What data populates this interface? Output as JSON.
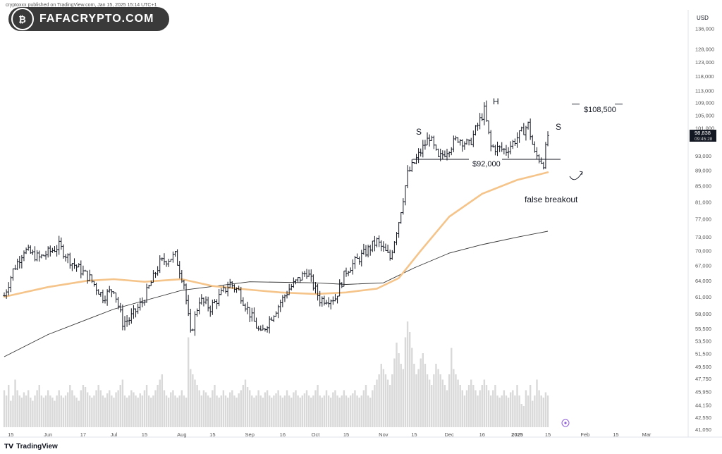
{
  "header": {
    "published_text": "cryptoxxx published on TradingView.com, Jan 15, 2025 15:14 UTC+1",
    "logo_text": "FAFACRYPTO.COM"
  },
  "footer": {
    "brand": "TradingView",
    "logo_icon": "tradingview-icon"
  },
  "chart_data": {
    "type": "candlestick",
    "currency_label": "USD",
    "y_scale": "log",
    "ylim": [
      41050,
      142000
    ],
    "y_ticks": [
      136000,
      128000,
      123000,
      118000,
      113000,
      109000,
      105000,
      101000,
      93000,
      89000,
      85000,
      81000,
      77000,
      73000,
      70000,
      67000,
      64000,
      61000,
      58000,
      55500,
      53500,
      51500,
      49500,
      47750,
      45950,
      44150,
      42550,
      41050
    ],
    "y_tick_labels": [
      "136,000",
      "128,000",
      "123,000",
      "118,000",
      "113,000",
      "109,000",
      "105,000",
      "101,000",
      "93,000",
      "89,000",
      "85,000",
      "81,000",
      "77,000",
      "73,000",
      "70,000",
      "67,000",
      "64,000",
      "61,000",
      "58,000",
      "55,500",
      "53,500",
      "51,500",
      "49,500",
      "47,750",
      "45,950",
      "44,150",
      "42,550",
      "41,050"
    ],
    "x_range": [
      "2024-05-12",
      "2025-03-20"
    ],
    "x_ticks": [
      {
        "date": "2024-05-15",
        "label": "15"
      },
      {
        "date": "2024-06-01",
        "label": "Jun"
      },
      {
        "date": "2024-06-17",
        "label": "17"
      },
      {
        "date": "2024-07-01",
        "label": "Jul"
      },
      {
        "date": "2024-07-15",
        "label": "15"
      },
      {
        "date": "2024-08-01",
        "label": "Aug"
      },
      {
        "date": "2024-08-15",
        "label": "15"
      },
      {
        "date": "2024-09-01",
        "label": "Sep"
      },
      {
        "date": "2024-09-16",
        "label": "16"
      },
      {
        "date": "2024-10-01",
        "label": "Oct"
      },
      {
        "date": "2024-10-15",
        "label": "15"
      },
      {
        "date": "2024-11-01",
        "label": "Nov"
      },
      {
        "date": "2024-11-15",
        "label": "15"
      },
      {
        "date": "2024-12-01",
        "label": "Dec"
      },
      {
        "date": "2024-12-16",
        "label": "16"
      },
      {
        "date": "2025-01-01",
        "label": "2025"
      },
      {
        "date": "2025-01-15",
        "label": "15"
      },
      {
        "date": "2025-02-01",
        "label": "Feb"
      },
      {
        "date": "2025-02-15",
        "label": "15"
      },
      {
        "date": "2025-03-01",
        "label": "Mar"
      }
    ],
    "price_anchors": [
      [
        "2024-05-12",
        61200
      ],
      [
        "2024-05-16",
        66000
      ],
      [
        "2024-05-21",
        70200
      ],
      [
        "2024-05-28",
        68500
      ],
      [
        "2024-06-06",
        71000
      ],
      [
        "2024-06-12",
        67500
      ],
      [
        "2024-06-20",
        64500
      ],
      [
        "2024-06-26",
        61000
      ],
      [
        "2024-07-01",
        62500
      ],
      [
        "2024-07-05",
        56500
      ],
      [
        "2024-07-08",
        57000
      ],
      [
        "2024-07-14",
        60000
      ],
      [
        "2024-07-22",
        67500
      ],
      [
        "2024-07-29",
        69000
      ],
      [
        "2024-08-02",
        63500
      ],
      [
        "2024-08-05",
        54500
      ],
      [
        "2024-08-09",
        60500
      ],
      [
        "2024-08-14",
        59000
      ],
      [
        "2024-08-23",
        63500
      ],
      [
        "2024-08-27",
        62000
      ],
      [
        "2024-09-01",
        58000
      ],
      [
        "2024-09-06",
        54500
      ],
      [
        "2024-09-10",
        57000
      ],
      [
        "2024-09-19",
        62500
      ],
      [
        "2024-09-27",
        65800
      ],
      [
        "2024-10-03",
        60500
      ],
      [
        "2024-10-10",
        60800
      ],
      [
        "2024-10-15",
        66000
      ],
      [
        "2024-10-21",
        68500
      ],
      [
        "2024-10-29",
        72000
      ],
      [
        "2024-11-04",
        68500
      ],
      [
        "2024-11-08",
        76500
      ],
      [
        "2024-11-12",
        88000
      ],
      [
        "2024-11-22",
        98500
      ],
      [
        "2024-11-26",
        92000
      ],
      [
        "2024-12-05",
        98000
      ],
      [
        "2024-12-10",
        96000
      ],
      [
        "2024-12-17",
        106500
      ],
      [
        "2024-12-20",
        95500
      ],
      [
        "2024-12-27",
        94500
      ],
      [
        "2025-01-06",
        102000
      ],
      [
        "2025-01-09",
        93500
      ],
      [
        "2025-01-13",
        91000
      ],
      [
        "2025-01-15",
        98838
      ]
    ],
    "last_price_label": "98,838",
    "countdown_label": "09:45:28",
    "sma_fast_label_color": "#f5c48a",
    "sma_fast": [
      [
        "2024-05-12",
        61000
      ],
      [
        "2024-06-01",
        62800
      ],
      [
        "2024-06-19",
        64000
      ],
      [
        "2024-07-01",
        64300
      ],
      [
        "2024-07-15",
        63800
      ],
      [
        "2024-08-01",
        64300
      ],
      [
        "2024-08-15",
        63000
      ],
      [
        "2024-09-01",
        62300
      ],
      [
        "2024-09-15",
        61800
      ],
      [
        "2024-10-01",
        61500
      ],
      [
        "2024-10-15",
        61800
      ],
      [
        "2024-10-29",
        62500
      ],
      [
        "2024-11-08",
        64500
      ],
      [
        "2024-11-18",
        70000
      ],
      [
        "2024-12-01",
        77500
      ],
      [
        "2024-12-16",
        83000
      ],
      [
        "2025-01-01",
        86500
      ],
      [
        "2025-01-15",
        88500
      ]
    ],
    "sma_slow": [
      [
        "2024-05-12",
        51000
      ],
      [
        "2024-06-01",
        54500
      ],
      [
        "2024-07-01",
        58800
      ],
      [
        "2024-08-01",
        62200
      ],
      [
        "2024-09-01",
        63800
      ],
      [
        "2024-10-01",
        63600
      ],
      [
        "2024-10-15",
        63300
      ],
      [
        "2024-11-01",
        63600
      ],
      [
        "2024-11-15",
        66500
      ],
      [
        "2024-12-01",
        69500
      ],
      [
        "2024-12-16",
        71300
      ],
      [
        "2025-01-01",
        72900
      ],
      [
        "2025-01-15",
        74200
      ]
    ],
    "volume_relative": [
      0.35,
      0.3,
      0.4,
      0.25,
      0.3,
      0.45,
      0.35,
      0.3,
      0.28,
      0.33,
      0.3,
      0.35,
      0.28,
      0.25,
      0.3,
      0.35,
      0.4,
      0.3,
      0.28,
      0.3,
      0.35,
      0.3,
      0.28,
      0.25,
      0.3,
      0.35,
      0.3,
      0.28,
      0.3,
      0.33,
      0.4,
      0.35,
      0.3,
      0.28,
      0.25,
      0.35,
      0.4,
      0.38,
      0.33,
      0.3,
      0.28,
      0.3,
      0.35,
      0.4,
      0.35,
      0.3,
      0.28,
      0.32,
      0.35,
      0.3,
      0.28,
      0.33,
      0.35,
      0.4,
      0.45,
      0.3,
      0.28,
      0.3,
      0.35,
      0.33,
      0.3,
      0.28,
      0.32,
      0.3,
      0.35,
      0.4,
      0.3,
      0.28,
      0.3,
      0.35,
      0.4,
      0.45,
      0.5,
      0.35,
      0.3,
      0.28,
      0.33,
      0.35,
      0.3,
      0.28,
      0.3,
      0.35,
      0.3,
      0.28,
      0.85,
      0.55,
      0.5,
      0.45,
      0.4,
      0.35,
      0.3,
      0.35,
      0.33,
      0.3,
      0.28,
      0.35,
      0.4,
      0.3,
      0.28,
      0.3,
      0.35,
      0.3,
      0.28,
      0.33,
      0.35,
      0.3,
      0.28,
      0.32,
      0.35,
      0.4,
      0.45,
      0.38,
      0.35,
      0.3,
      0.28,
      0.3,
      0.35,
      0.3,
      0.28,
      0.33,
      0.35,
      0.3,
      0.28,
      0.3,
      0.32,
      0.35,
      0.3,
      0.28,
      0.3,
      0.35,
      0.3,
      0.28,
      0.33,
      0.35,
      0.3,
      0.28,
      0.3,
      0.32,
      0.35,
      0.3,
      0.28,
      0.3,
      0.35,
      0.4,
      0.3,
      0.28,
      0.3,
      0.35,
      0.3,
      0.28,
      0.33,
      0.35,
      0.3,
      0.28,
      0.3,
      0.35,
      0.3,
      0.28,
      0.3,
      0.32,
      0.35,
      0.3,
      0.28,
      0.3,
      0.35,
      0.4,
      0.3,
      0.28,
      0.35,
      0.4,
      0.45,
      0.5,
      0.6,
      0.55,
      0.5,
      0.45,
      0.4,
      0.5,
      0.65,
      0.8,
      0.7,
      0.6,
      0.55,
      0.85,
      1.0,
      0.9,
      0.75,
      0.6,
      0.5,
      0.55,
      0.65,
      0.7,
      0.6,
      0.5,
      0.45,
      0.4,
      0.5,
      0.6,
      0.55,
      0.5,
      0.45,
      0.4,
      0.35,
      0.5,
      0.75,
      0.55,
      0.5,
      0.45,
      0.4,
      0.35,
      0.3,
      0.35,
      0.4,
      0.45,
      0.4,
      0.35,
      0.3,
      0.35,
      0.4,
      0.45,
      0.4,
      0.35,
      0.3,
      0.35,
      0.4,
      0.3,
      0.28,
      0.3,
      0.35,
      0.3,
      0.28,
      0.33,
      0.35,
      0.3,
      0.4,
      0.3,
      0.22,
      0.2
    ],
    "annotations": {
      "left_shoulder": "S",
      "head": "H",
      "right_shoulder": "S",
      "neckline_label": "$92,000",
      "neckline_value": 92000,
      "target_label": "$108,500",
      "target_value": 108500,
      "breakout_label": "false breakout"
    }
  },
  "colors": {
    "bar": "#131722",
    "sma_fast": "#f5c48a",
    "sma_slow": "#333333",
    "volume": "#d9d9d9",
    "last_price_bg": "#131722"
  }
}
